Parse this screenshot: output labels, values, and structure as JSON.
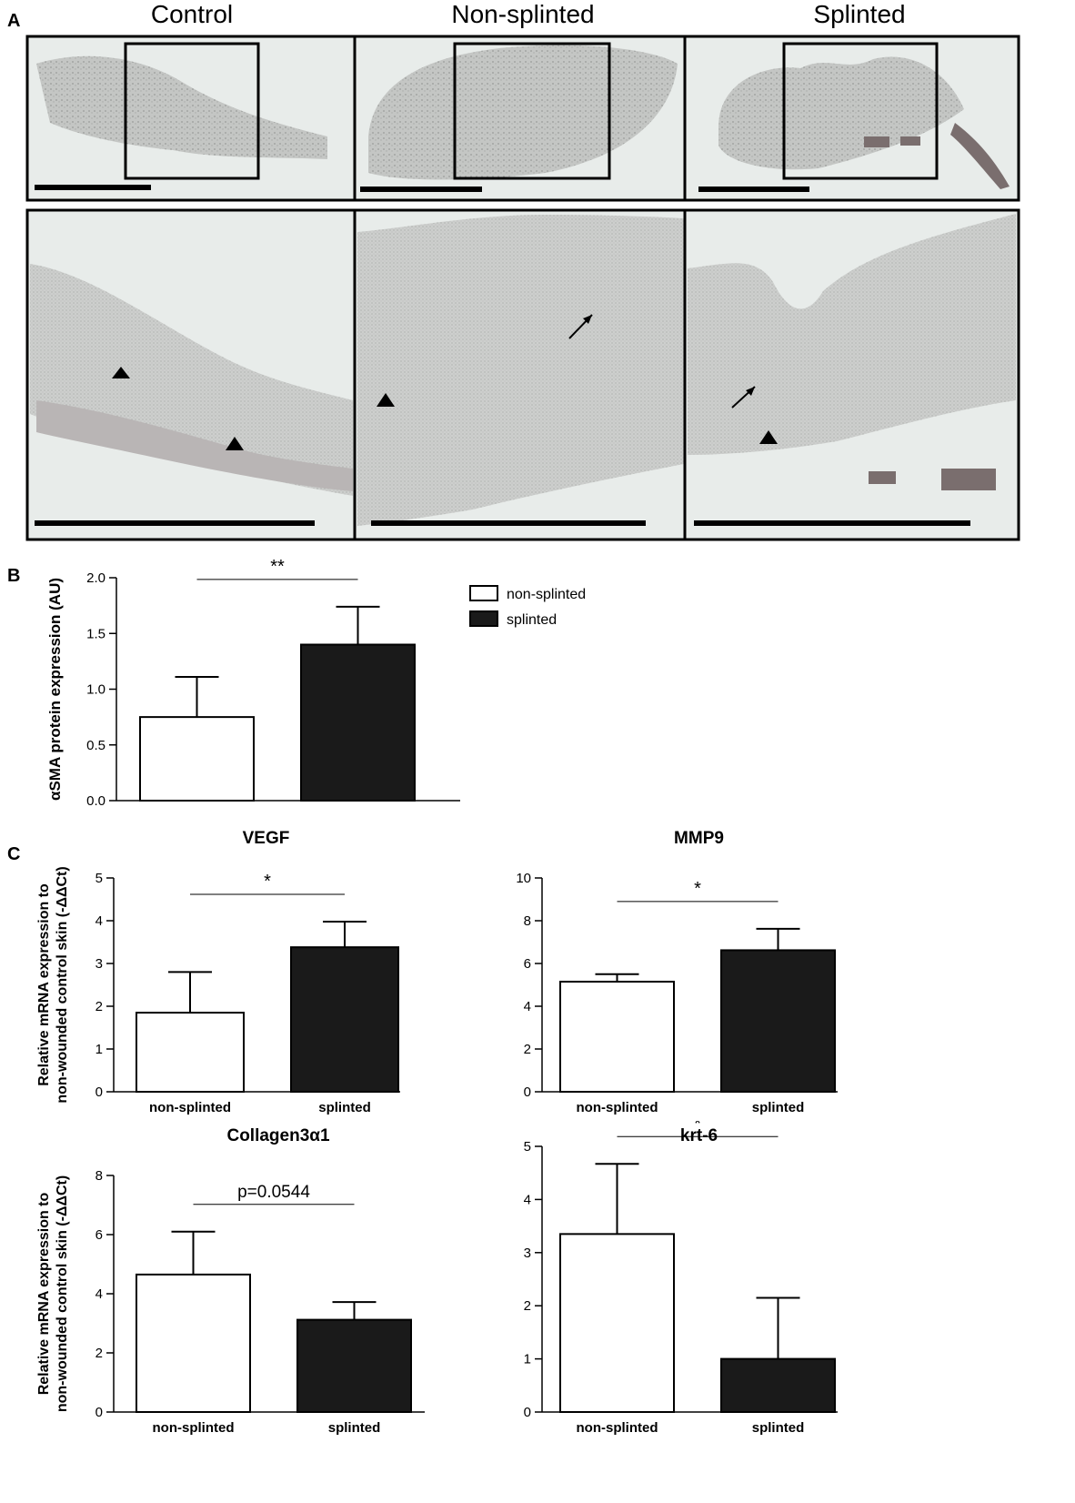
{
  "panels": {
    "a": "A",
    "b": "B",
    "c": "C"
  },
  "histology": {
    "columns": [
      "Control",
      "Non-splinted",
      "Splinted"
    ]
  },
  "colors": {
    "open_bar": "#ffffff",
    "filled_bar": "#1a1a1a",
    "tissue_bg": "#e7ebe8",
    "tissue": "#c9c9c9"
  },
  "chart_data": [
    {
      "id": "b",
      "type": "bar",
      "title": "",
      "ylabel": "αSMA protein expression (AU)",
      "categories": [
        "non-splinted",
        "splinted"
      ],
      "show_xticklabels": false,
      "values": [
        0.75,
        1.4
      ],
      "errors": [
        0.36,
        0.34
      ],
      "ylim": [
        0,
        2.0
      ],
      "yticks": [
        0.0,
        0.5,
        1.0,
        1.5,
        2.0
      ],
      "ytick_decimals": 1,
      "significance": "**",
      "legend": [
        {
          "label": "non-splinted",
          "fill": "open"
        },
        {
          "label": "splinted",
          "fill": "filled"
        }
      ]
    },
    {
      "id": "vegf",
      "type": "bar",
      "title": "VEGF",
      "ylabel": [
        "Relative mRNA expression to",
        "non-wounded control skin (-ΔΔCt)"
      ],
      "categories": [
        "non-splinted",
        "splinted"
      ],
      "show_xticklabels": true,
      "values": [
        1.85,
        3.38
      ],
      "errors": [
        0.95,
        0.6
      ],
      "ylim": [
        0,
        5
      ],
      "yticks": [
        0,
        1,
        2,
        3,
        4,
        5
      ],
      "ytick_decimals": 0,
      "significance": "*"
    },
    {
      "id": "mmp9",
      "type": "bar",
      "title": "MMP9",
      "ylabel": [
        "Relative mRNA expression to",
        "non-wounded control skin (-ΔΔCt)"
      ],
      "categories": [
        "non-splinted",
        "splinted"
      ],
      "show_xticklabels": true,
      "values": [
        5.15,
        6.62
      ],
      "errors": [
        0.35,
        1.0
      ],
      "ylim": [
        0,
        10
      ],
      "yticks": [
        0,
        2,
        4,
        6,
        8,
        10
      ],
      "ytick_decimals": 0,
      "significance": "*"
    },
    {
      "id": "col3a1",
      "type": "bar",
      "title": "Collagen3α1",
      "ylabel": [
        "Relative mRNA expression to",
        "non-wounded control skin (-ΔΔCt)"
      ],
      "categories": [
        "non-splinted",
        "splinted"
      ],
      "show_xticklabels": true,
      "values": [
        4.65,
        3.12
      ],
      "errors": [
        1.45,
        0.6
      ],
      "ylim": [
        0,
        8
      ],
      "yticks": [
        0,
        2,
        4,
        6,
        8
      ],
      "ytick_decimals": 0,
      "significance": "p=0.0544"
    },
    {
      "id": "krt6",
      "type": "bar",
      "title": "krt-6",
      "ylabel": [
        "Relative mRNA expression to",
        "non-wounded control skin (-ΔΔCt)"
      ],
      "categories": [
        "non-splinted",
        "splinted"
      ],
      "show_xticklabels": true,
      "values": [
        3.35,
        1.0
      ],
      "errors": [
        1.32,
        1.15
      ],
      "ylim": [
        0,
        5
      ],
      "yticks": [
        0,
        1,
        2,
        3,
        4,
        5
      ],
      "ytick_decimals": 0,
      "significance": "*"
    }
  ]
}
